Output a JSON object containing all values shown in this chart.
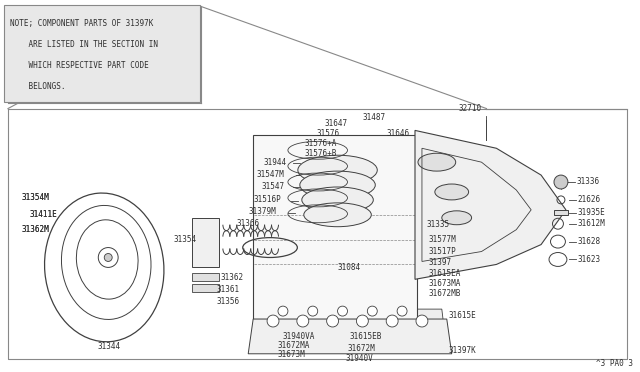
{
  "bg_color": "#ffffff",
  "line_color": "#404040",
  "text_color": "#303030",
  "note_bg": "#e8e8e8",
  "note_border": "#888888",
  "note_text_lines": [
    "NOTE; COMPONENT PARTS OF 31397K",
    "    ARE LISTED IN THE SECTION IN",
    "    WHICH RESPECTIVE PART CODE",
    "    BELONGS."
  ],
  "page_ref": "^3 PA0 3"
}
